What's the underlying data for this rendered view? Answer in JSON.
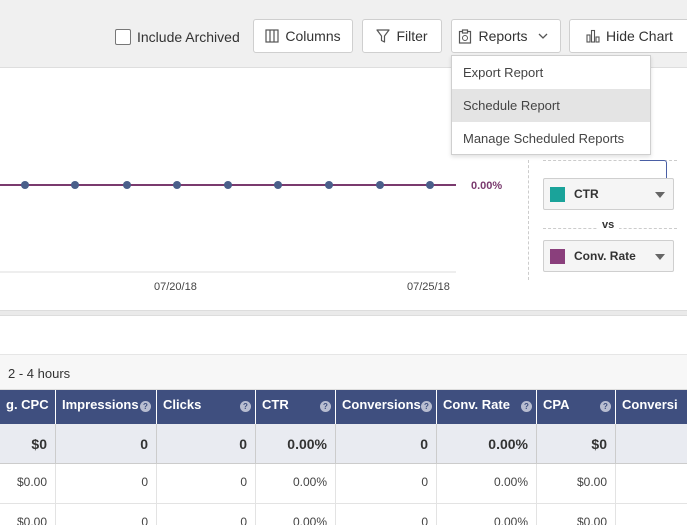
{
  "toolbar": {
    "include_archived_label": "Include Archived",
    "columns_label": "Columns",
    "filter_label": "Filter",
    "reports_label": "Reports",
    "hide_chart_label": "Hide Chart"
  },
  "reports_menu": {
    "items": [
      "Export Report",
      "Schedule Report",
      "Manage Scheduled Reports"
    ],
    "active_index": 1
  },
  "chart": {
    "value_label": "0.00%",
    "date_labels": [
      "07/20/18",
      "07/25/18"
    ],
    "series_color": "#7a3a6e",
    "point_color": "#4a5f8a"
  },
  "metric_selector": {
    "metric1": {
      "label": "CTR",
      "color": "#1aa39a"
    },
    "vs_label": "vs",
    "metric2": {
      "label": "Conv. Rate",
      "color": "#8a3f7c"
    }
  },
  "table": {
    "range_label": "2 - 4 hours",
    "headers": [
      "g. CPC",
      "Impressions",
      "Clicks",
      "CTR",
      "Conversions",
      "Conv. Rate",
      "CPA",
      "Conversi"
    ],
    "totals": [
      "$0",
      "0",
      "0",
      "0.00%",
      "0",
      "0.00%",
      "$0",
      ""
    ],
    "rows": [
      [
        "$0.00",
        "0",
        "0",
        "0.00%",
        "0",
        "0.00%",
        "$0.00",
        ""
      ],
      [
        "$0.00",
        "0",
        "0",
        "0.00%",
        "0",
        "0.00%",
        "$0.00",
        ""
      ]
    ]
  }
}
